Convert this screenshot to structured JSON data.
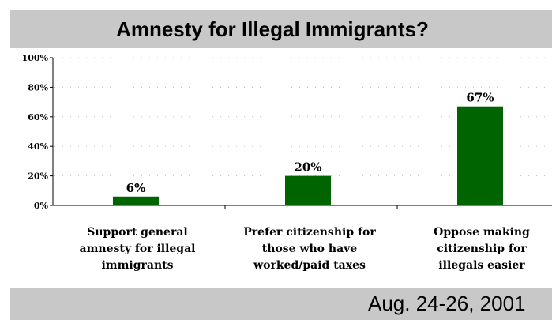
{
  "header": {
    "title": "Amnesty for Illegal Immigrants?"
  },
  "footer": {
    "date": "Aug. 24-26, 2001"
  },
  "colors": {
    "bar": "#006400",
    "banner": "#c8c8c8",
    "grid": "#bdbdbd"
  },
  "chart_data": {
    "type": "bar",
    "title": "",
    "xlabel": "",
    "ylabel": "",
    "ylim": [
      0,
      100
    ],
    "y_ticks": [
      "0%",
      "20%",
      "40%",
      "60%",
      "80%",
      "100%"
    ],
    "grid": "dotted horizontal",
    "categories": [
      [
        "Support general",
        "amnesty for illegal",
        "immigrants"
      ],
      [
        "Prefer citizenship for",
        "those who have",
        "worked/paid taxes"
      ],
      [
        "Oppose making",
        "citizenship for",
        "illegals easier"
      ]
    ],
    "values": [
      6,
      20,
      67
    ],
    "data_labels": [
      "6%",
      "20%",
      "67%"
    ]
  }
}
